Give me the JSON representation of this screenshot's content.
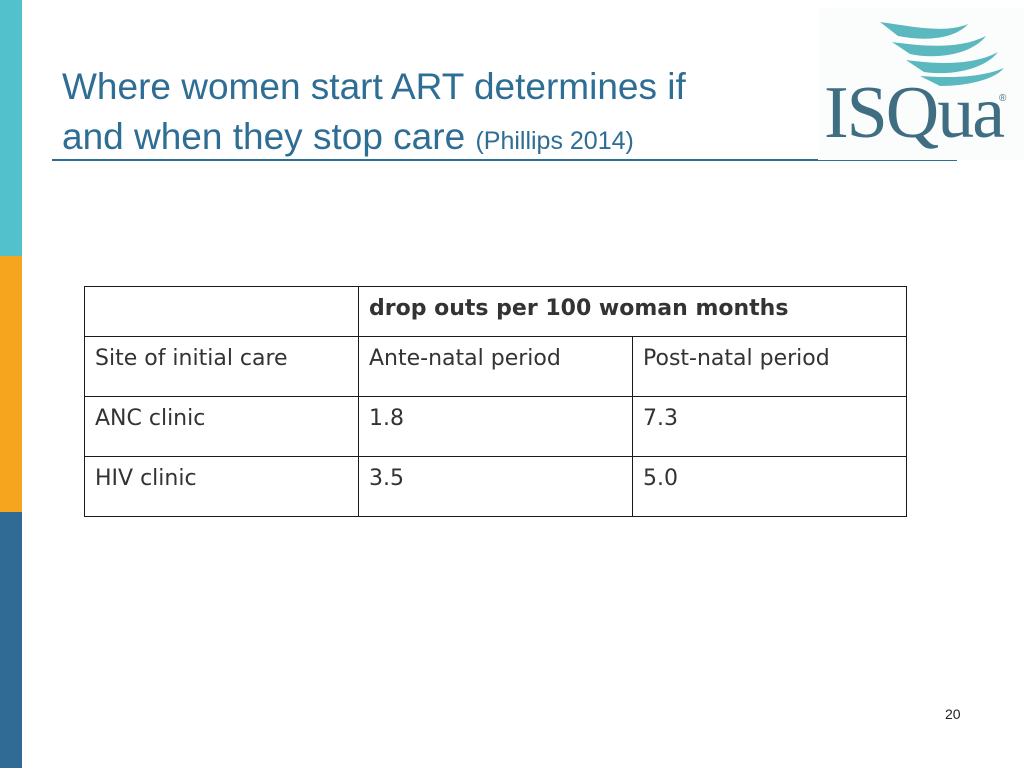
{
  "colors": {
    "title": "#2e6d94",
    "rule": "#2e6d94",
    "side_bar_top": "#53c1cc",
    "side_bar_mid": "#f6a51e",
    "side_bar_bottom": "#2f6b94",
    "logo_text": "#3f6e82",
    "logo_swoosh": "#5ab8be"
  },
  "slide": {
    "title_line1": "Where women start ART determines if",
    "title_line2": "and when they stop care",
    "title_citation": "(Phillips 2014)",
    "page_number": "20"
  },
  "logo": {
    "text": "ISQua",
    "registered": "®",
    "icon": "wave-swoosh-icon"
  },
  "table": {
    "group_header": "drop outs per 100 woman months",
    "columns": [
      "Site of initial care",
      "Ante-natal period",
      "Post-natal period"
    ],
    "rows": [
      [
        "ANC clinic",
        "1.8",
        "7.3"
      ],
      [
        "HIV clinic",
        "3.5",
        "5.0"
      ]
    ]
  }
}
